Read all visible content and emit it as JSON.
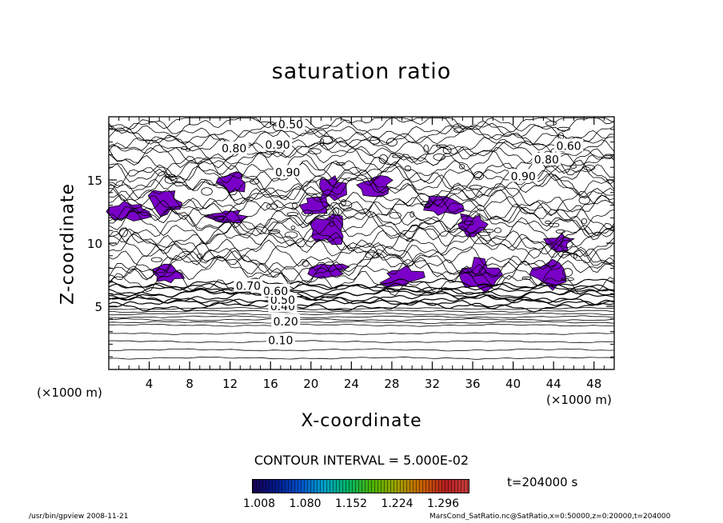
{
  "chart_data": {
    "type": "contour",
    "title": "saturation ratio",
    "xlabel": "X-coordinate",
    "ylabel": "Z-coordinate",
    "x_unit_left": "(×1000 m)",
    "x_unit_right": "(×1000 m)",
    "xlim": [
      0,
      50
    ],
    "ylim": [
      0,
      20
    ],
    "x_ticks": [
      "4",
      "8",
      "12",
      "16",
      "20",
      "24",
      "28",
      "32",
      "36",
      "40",
      "44",
      "48"
    ],
    "y_ticks": [
      "5",
      "10",
      "15"
    ],
    "contour_labels": [
      {
        "text": "0.10",
        "x": 17,
        "z": 2.3
      },
      {
        "text": "0.20",
        "x": 17.5,
        "z": 3.8
      },
      {
        "text": "0.40",
        "x": 17.2,
        "z": 5.0
      },
      {
        "text": "0.50",
        "x": 17.2,
        "z": 5.5
      },
      {
        "text": "0.60",
        "x": 16.5,
        "z": 6.2
      },
      {
        "text": "0.70",
        "x": 13.8,
        "z": 6.6
      },
      {
        "text": "0.50",
        "x": 18.0,
        "z": 19.4
      },
      {
        "text": "0.80",
        "x": 12.4,
        "z": 17.5
      },
      {
        "text": "0.90",
        "x": 16.7,
        "z": 17.8
      },
      {
        "text": "0.90",
        "x": 17.7,
        "z": 15.6
      },
      {
        "text": "0.60",
        "x": 45.5,
        "z": 17.7
      },
      {
        "text": "0.80",
        "x": 43.3,
        "z": 16.6
      },
      {
        "text": "0.90",
        "x": 41.0,
        "z": 15.3
      }
    ],
    "supersaturated_color": "#7a00c8",
    "supersaturated_regions": [
      {
        "x": 2.0,
        "z": 12.5
      },
      {
        "x": 5.5,
        "z": 13.2
      },
      {
        "x": 12.3,
        "z": 14.8
      },
      {
        "x": 11.8,
        "z": 12.1
      },
      {
        "x": 20.5,
        "z": 13.0
      },
      {
        "x": 21.7,
        "z": 11.0
      },
      {
        "x": 22.0,
        "z": 14.3
      },
      {
        "x": 26.5,
        "z": 14.6
      },
      {
        "x": 33.0,
        "z": 13.0
      },
      {
        "x": 35.8,
        "z": 11.5
      },
      {
        "x": 44.5,
        "z": 10.0
      },
      {
        "x": 5.8,
        "z": 7.6
      },
      {
        "x": 21.5,
        "z": 7.8
      },
      {
        "x": 29.0,
        "z": 7.3
      },
      {
        "x": 36.7,
        "z": 7.5
      },
      {
        "x": 43.5,
        "z": 7.5
      }
    ],
    "contour_interval_text": "CONTOUR INTERVAL = 5.000E-02",
    "time_text": "t=204000 s",
    "colorbar": {
      "ticks": [
        "1.008",
        "1.080",
        "1.152",
        "1.224",
        "1.296"
      ],
      "colors": [
        "#1a0055",
        "#001a8c",
        "#0050c8",
        "#00a0c8",
        "#00b464",
        "#50b400",
        "#a0a000",
        "#c86400",
        "#b41e1e",
        "#c83c3c"
      ]
    },
    "footer_left": "/usr/bin/gpview   2008-11-21",
    "footer_right": "MarsCond_SatRatio.nc@SatRatio,x=0:50000,z=0:20000,t=204000"
  }
}
